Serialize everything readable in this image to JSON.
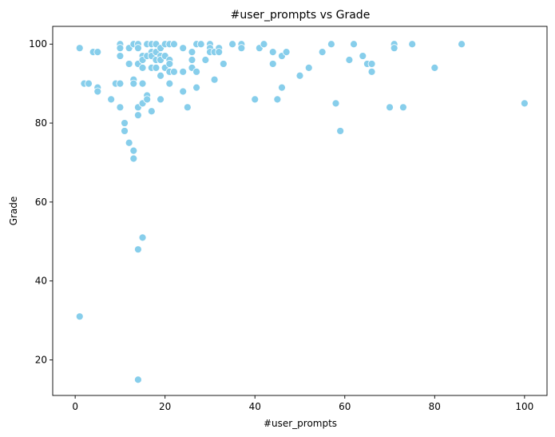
{
  "chart_data": {
    "type": "scatter",
    "title": "#user_prompts vs Grade",
    "xlabel": "#user_prompts",
    "ylabel": "Grade",
    "xlim": [
      -5,
      105
    ],
    "ylim": [
      11,
      104.5
    ],
    "xticks": [
      0,
      20,
      40,
      60,
      80,
      100
    ],
    "yticks": [
      20,
      40,
      60,
      80,
      100
    ],
    "grid": false,
    "marker_color": "#87CEEB",
    "points": [
      [
        1,
        99
      ],
      [
        1,
        31
      ],
      [
        2,
        90
      ],
      [
        3,
        90
      ],
      [
        4,
        98
      ],
      [
        5,
        98
      ],
      [
        5,
        89
      ],
      [
        5,
        88
      ],
      [
        8,
        86
      ],
      [
        9,
        90
      ],
      [
        10,
        100
      ],
      [
        10,
        99
      ],
      [
        10,
        97
      ],
      [
        10,
        90
      ],
      [
        10,
        84
      ],
      [
        11,
        80
      ],
      [
        11,
        78
      ],
      [
        12,
        99
      ],
      [
        12,
        95
      ],
      [
        12,
        75
      ],
      [
        13,
        100
      ],
      [
        13,
        91
      ],
      [
        13,
        90
      ],
      [
        13,
        73
      ],
      [
        13,
        71
      ],
      [
        14,
        100
      ],
      [
        14,
        99
      ],
      [
        14,
        95
      ],
      [
        14,
        84
      ],
      [
        14,
        82
      ],
      [
        14,
        48
      ],
      [
        14,
        15
      ],
      [
        15,
        97
      ],
      [
        15,
        96
      ],
      [
        15,
        94
      ],
      [
        15,
        90
      ],
      [
        15,
        85
      ],
      [
        15,
        51
      ],
      [
        16,
        100
      ],
      [
        16,
        97
      ],
      [
        16,
        87
      ],
      [
        16,
        86
      ],
      [
        17,
        100
      ],
      [
        17,
        98
      ],
      [
        17,
        97
      ],
      [
        17,
        94
      ],
      [
        17,
        83
      ],
      [
        18,
        100
      ],
      [
        18,
        98
      ],
      [
        18,
        96
      ],
      [
        18,
        94
      ],
      [
        19,
        99
      ],
      [
        19,
        97
      ],
      [
        19,
        96
      ],
      [
        19,
        92
      ],
      [
        19,
        86
      ],
      [
        20,
        100
      ],
      [
        20,
        97
      ],
      [
        20,
        94
      ],
      [
        21,
        100
      ],
      [
        21,
        96
      ],
      [
        21,
        95
      ],
      [
        21,
        93
      ],
      [
        21,
        90
      ],
      [
        22,
        100
      ],
      [
        22,
        93
      ],
      [
        24,
        99
      ],
      [
        24,
        93
      ],
      [
        24,
        88
      ],
      [
        25,
        84
      ],
      [
        26,
        98
      ],
      [
        26,
        96
      ],
      [
        26,
        94
      ],
      [
        27,
        100
      ],
      [
        27,
        93
      ],
      [
        27,
        89
      ],
      [
        28,
        100
      ],
      [
        29,
        96
      ],
      [
        30,
        100
      ],
      [
        30,
        99
      ],
      [
        30,
        98
      ],
      [
        31,
        98
      ],
      [
        31,
        91
      ],
      [
        32,
        99
      ],
      [
        32,
        98
      ],
      [
        33,
        95
      ],
      [
        35,
        100
      ],
      [
        37,
        100
      ],
      [
        37,
        99
      ],
      [
        40,
        86
      ],
      [
        41,
        99
      ],
      [
        42,
        100
      ],
      [
        44,
        98
      ],
      [
        44,
        95
      ],
      [
        45,
        86
      ],
      [
        46,
        97
      ],
      [
        46,
        89
      ],
      [
        47,
        98
      ],
      [
        50,
        92
      ],
      [
        52,
        94
      ],
      [
        55,
        98
      ],
      [
        57,
        100
      ],
      [
        58,
        85
      ],
      [
        59,
        78
      ],
      [
        61,
        96
      ],
      [
        62,
        100
      ],
      [
        64,
        97
      ],
      [
        65,
        95
      ],
      [
        66,
        95
      ],
      [
        66,
        93
      ],
      [
        70,
        84
      ],
      [
        71,
        100
      ],
      [
        71,
        99
      ],
      [
        73,
        84
      ],
      [
        75,
        100
      ],
      [
        80,
        94
      ],
      [
        86,
        100
      ],
      [
        100,
        85
      ]
    ]
  }
}
